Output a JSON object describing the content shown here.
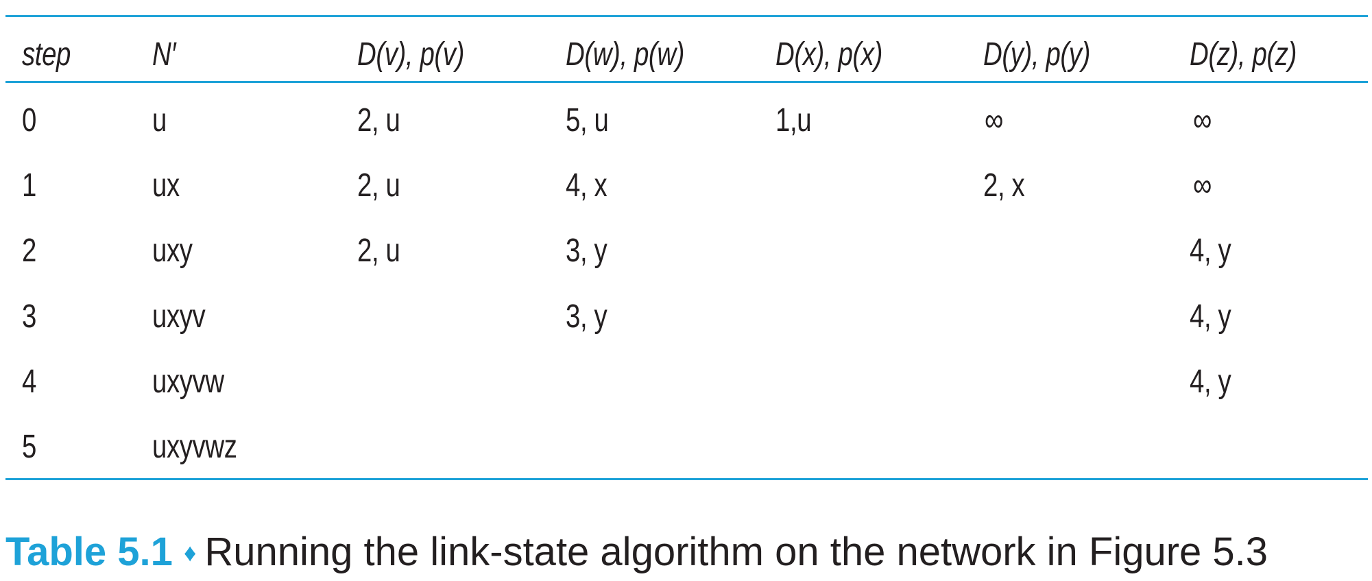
{
  "table": {
    "headers": [
      "step",
      "N′",
      "D(v), p(v)",
      "D(w), p(w)",
      "D(x), p(x)",
      "D(y), p(y)",
      "D(z), p(z)"
    ],
    "rows": [
      [
        "0",
        "u",
        "2, u",
        "5, u",
        "1,u",
        "∞",
        "∞"
      ],
      [
        "1",
        "ux",
        "2, u",
        "4, x",
        "",
        "2, x",
        "∞"
      ],
      [
        "2",
        "uxy",
        "2, u",
        "3, y",
        "",
        "",
        "4, y"
      ],
      [
        "3",
        "uxyv",
        "",
        "3, y",
        "",
        "",
        "4, y"
      ],
      [
        "4",
        "uxyvw",
        "",
        "",
        "",
        "",
        "4, y"
      ],
      [
        "5",
        "uxyvwz",
        "",
        "",
        "",
        "",
        ""
      ]
    ],
    "rule_color": "#1ea2d8"
  },
  "caption": {
    "label": "Table 5.1",
    "separator": "♦",
    "text": "Running the link-state algorithm on the network in Figure 5.3"
  }
}
